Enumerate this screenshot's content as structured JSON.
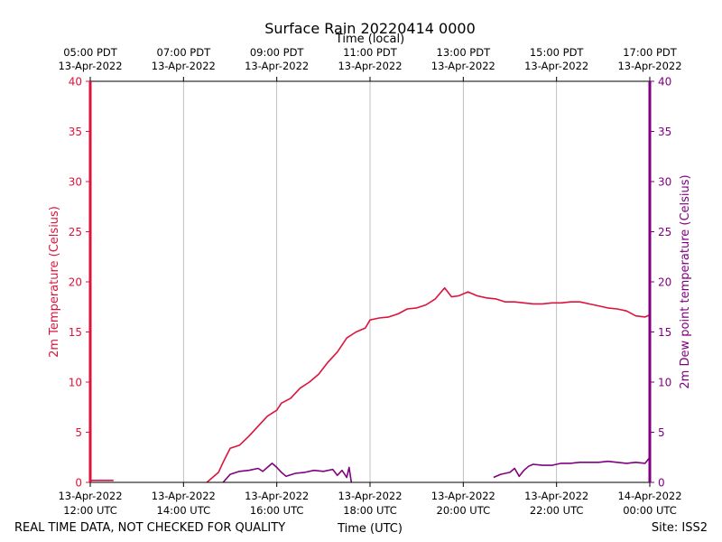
{
  "chart_data": {
    "type": "line",
    "title": "Surface Rain 20220414 0000",
    "top_axis_label": "Time (local)",
    "xlabel": "Time (UTC)",
    "ylabel_left": "2m Temperature (Celsius)",
    "ylabel_right": "2m Dew point temperature (Celsius)",
    "ylim": [
      0,
      40
    ],
    "yticks": [
      "0",
      "5",
      "10",
      "15",
      "20",
      "25",
      "30",
      "35",
      "40"
    ],
    "x_range_hours_utc": [
      12,
      24
    ],
    "utc_ticks": [
      {
        "hour": 12,
        "line1": "13-Apr-2022",
        "line2": "12:00 UTC"
      },
      {
        "hour": 14,
        "line1": "13-Apr-2022",
        "line2": "14:00 UTC"
      },
      {
        "hour": 16,
        "line1": "13-Apr-2022",
        "line2": "16:00 UTC"
      },
      {
        "hour": 18,
        "line1": "13-Apr-2022",
        "line2": "18:00 UTC"
      },
      {
        "hour": 20,
        "line1": "13-Apr-2022",
        "line2": "20:00 UTC"
      },
      {
        "hour": 22,
        "line1": "13-Apr-2022",
        "line2": "22:00 UTC"
      },
      {
        "hour": 24,
        "line1": "14-Apr-2022",
        "line2": "00:00 UTC"
      }
    ],
    "local_ticks": [
      {
        "hour": 12,
        "line1": "05:00 PDT",
        "line2": "13-Apr-2022"
      },
      {
        "hour": 14,
        "line1": "07:00 PDT",
        "line2": "13-Apr-2022"
      },
      {
        "hour": 16,
        "line1": "09:00 PDT",
        "line2": "13-Apr-2022"
      },
      {
        "hour": 18,
        "line1": "11:00 PDT",
        "line2": "13-Apr-2022"
      },
      {
        "hour": 20,
        "line1": "13:00 PDT",
        "line2": "13-Apr-2022"
      },
      {
        "hour": 22,
        "line1": "15:00 PDT",
        "line2": "13-Apr-2022"
      },
      {
        "hour": 24,
        "line1": "17:00 PDT",
        "line2": "13-Apr-2022"
      }
    ],
    "series": [
      {
        "name": "2m Temperature",
        "color": "#dc143c",
        "points": [
          [
            12.0,
            0.2
          ],
          [
            12.5,
            0.2
          ],
          [
            12.7,
            null
          ],
          [
            14.5,
            0.0
          ],
          [
            14.6,
            0.4
          ],
          [
            14.75,
            1.0
          ],
          [
            14.85,
            2.0
          ],
          [
            15.0,
            3.4
          ],
          [
            15.2,
            3.7
          ],
          [
            15.4,
            4.6
          ],
          [
            15.6,
            5.6
          ],
          [
            15.8,
            6.6
          ],
          [
            16.0,
            7.2
          ],
          [
            16.1,
            7.9
          ],
          [
            16.3,
            8.4
          ],
          [
            16.5,
            9.4
          ],
          [
            16.7,
            10.0
          ],
          [
            16.9,
            10.8
          ],
          [
            17.1,
            12.0
          ],
          [
            17.3,
            13.0
          ],
          [
            17.5,
            14.4
          ],
          [
            17.7,
            15.0
          ],
          [
            17.9,
            15.4
          ],
          [
            18.0,
            16.2
          ],
          [
            18.2,
            16.4
          ],
          [
            18.4,
            16.5
          ],
          [
            18.6,
            16.8
          ],
          [
            18.8,
            17.3
          ],
          [
            19.0,
            17.4
          ],
          [
            19.2,
            17.7
          ],
          [
            19.4,
            18.3
          ],
          [
            19.6,
            19.4
          ],
          [
            19.75,
            18.5
          ],
          [
            19.9,
            18.6
          ],
          [
            20.1,
            19.0
          ],
          [
            20.3,
            18.6
          ],
          [
            20.5,
            18.4
          ],
          [
            20.7,
            18.3
          ],
          [
            20.9,
            18.0
          ],
          [
            21.1,
            18.0
          ],
          [
            21.3,
            17.9
          ],
          [
            21.5,
            17.8
          ],
          [
            21.7,
            17.8
          ],
          [
            21.9,
            17.9
          ],
          [
            22.1,
            17.9
          ],
          [
            22.3,
            18.0
          ],
          [
            22.5,
            18.0
          ],
          [
            22.7,
            17.8
          ],
          [
            22.9,
            17.6
          ],
          [
            23.1,
            17.4
          ],
          [
            23.3,
            17.3
          ],
          [
            23.5,
            17.1
          ],
          [
            23.7,
            16.6
          ],
          [
            23.9,
            16.5
          ],
          [
            24.0,
            16.7
          ]
        ]
      },
      {
        "name": "2m Dew point temperature",
        "color": "#800080",
        "points": [
          [
            14.85,
            0.0
          ],
          [
            15.0,
            0.8
          ],
          [
            15.2,
            1.1
          ],
          [
            15.4,
            1.2
          ],
          [
            15.6,
            1.4
          ],
          [
            15.7,
            1.1
          ],
          [
            15.8,
            1.5
          ],
          [
            15.9,
            1.9
          ],
          [
            16.0,
            1.5
          ],
          [
            16.1,
            1.0
          ],
          [
            16.2,
            0.6
          ],
          [
            16.4,
            0.9
          ],
          [
            16.6,
            1.0
          ],
          [
            16.8,
            1.2
          ],
          [
            17.0,
            1.1
          ],
          [
            17.2,
            1.3
          ],
          [
            17.3,
            0.7
          ],
          [
            17.4,
            1.2
          ],
          [
            17.5,
            0.5
          ],
          [
            17.55,
            1.5
          ],
          [
            17.6,
            0.0
          ],
          [
            17.65,
            null
          ],
          [
            20.65,
            0.5
          ],
          [
            20.8,
            0.8
          ],
          [
            21.0,
            1.0
          ],
          [
            21.1,
            1.4
          ],
          [
            21.2,
            0.6
          ],
          [
            21.3,
            1.2
          ],
          [
            21.4,
            1.6
          ],
          [
            21.5,
            1.8
          ],
          [
            21.7,
            1.7
          ],
          [
            21.9,
            1.7
          ],
          [
            22.1,
            1.9
          ],
          [
            22.3,
            1.9
          ],
          [
            22.5,
            2.0
          ],
          [
            22.7,
            2.0
          ],
          [
            22.9,
            2.0
          ],
          [
            23.1,
            2.1
          ],
          [
            23.3,
            2.0
          ],
          [
            23.5,
            1.9
          ],
          [
            23.7,
            2.0
          ],
          [
            23.9,
            1.9
          ],
          [
            24.0,
            2.5
          ]
        ]
      }
    ]
  },
  "footer": {
    "left_note": "REAL TIME DATA, NOT CHECKED FOR QUALITY",
    "site": "Site: ISS2"
  }
}
